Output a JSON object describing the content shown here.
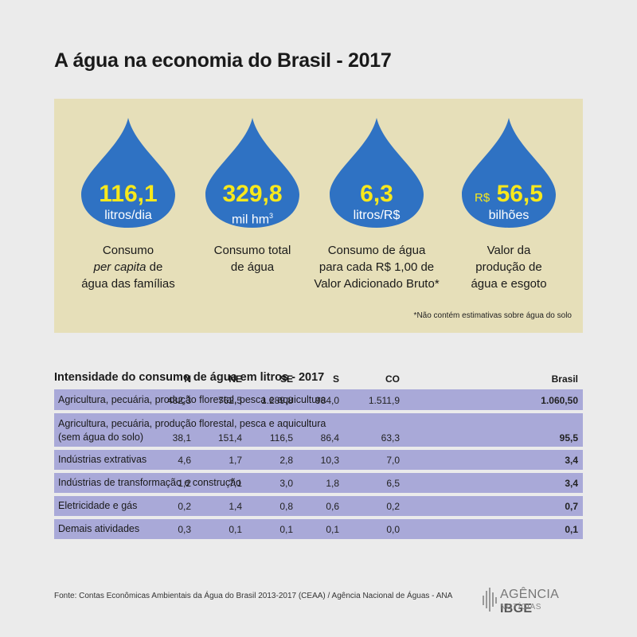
{
  "title": "A água na economia do Brasil - 2017",
  "colors": {
    "panel": "#e6dfb9",
    "drop": "#2f72c3",
    "highlight": "#f7e81c",
    "row": "#a9a9d8"
  },
  "stats": [
    {
      "icon": "water-drop-icon",
      "value": "116,1",
      "unit": "litros/dia",
      "caption_lines": [
        "Consumo",
        "per capita de",
        "água das famílias"
      ]
    },
    {
      "icon": "water-drop-icon",
      "value": "329,8",
      "unit": "mil hm",
      "unit_sup": "3",
      "caption_lines": [
        "Consumo total",
        "de água"
      ]
    },
    {
      "icon": "water-drop-icon",
      "value": "6,3",
      "unit": "litros/R$",
      "caption_lines": [
        "Consumo de água",
        "para cada R$ 1,00 de",
        "Valor Adicionado Bruto*"
      ]
    },
    {
      "icon": "water-drop-icon",
      "currency": "R$",
      "value": "56,5",
      "unit": "bilhões",
      "caption_lines": [
        "Valor da",
        "produção de",
        "água e esgoto"
      ]
    }
  ],
  "note": "*Não contém estimativas sobre água do solo",
  "table": {
    "heading": "Intensidade do consumo de água em litros - 2017",
    "columns": [
      "N",
      "NE",
      "SE",
      "S",
      "CO",
      "Brasil"
    ],
    "rows": [
      {
        "label": "Agricultura, pecuária, produção florestal, pesca e aquicultura",
        "label2": "",
        "values": [
          "482,3",
          "762,5",
          "1.289,8",
          "984,0",
          "1.511,9",
          "1.060,50"
        ]
      },
      {
        "label": "Agricultura, pecuária, produção florestal, pesca e aquicultura",
        "label2": "(sem água do solo)",
        "values": [
          "38,1",
          "151,4",
          "116,5",
          "86,4",
          "63,3",
          "95,5"
        ]
      },
      {
        "label": "Indústrias extrativas",
        "label2": "",
        "values": [
          "4,6",
          "1,7",
          "2,8",
          "10,3",
          "7,0",
          "3,4"
        ]
      },
      {
        "label": "Indústrias de transformação e construção",
        "label2": "",
        "values": [
          "1,2",
          "7,1",
          "3,0",
          "1,8",
          "6,5",
          "3,4"
        ]
      },
      {
        "label": "Eletricidade e gás",
        "label2": "",
        "values": [
          "0,2",
          "1,4",
          "0,8",
          "0,6",
          "0,2",
          "0,7"
        ]
      },
      {
        "label": "Demais atividades",
        "label2": "",
        "values": [
          "0,3",
          "0,1",
          "0,1",
          "0,1",
          "0,0",
          "0,1"
        ]
      }
    ]
  },
  "footer": "Fonte:  Contas Econômicas Ambientais da Água do Brasil 2013-2017 (CEAA) / Agência Nacional de Águas - ANA",
  "logo": {
    "brand_light": "AGÊNCIA",
    "brand_bold": "IBGE",
    "sub": "NOTÍCIAS"
  }
}
